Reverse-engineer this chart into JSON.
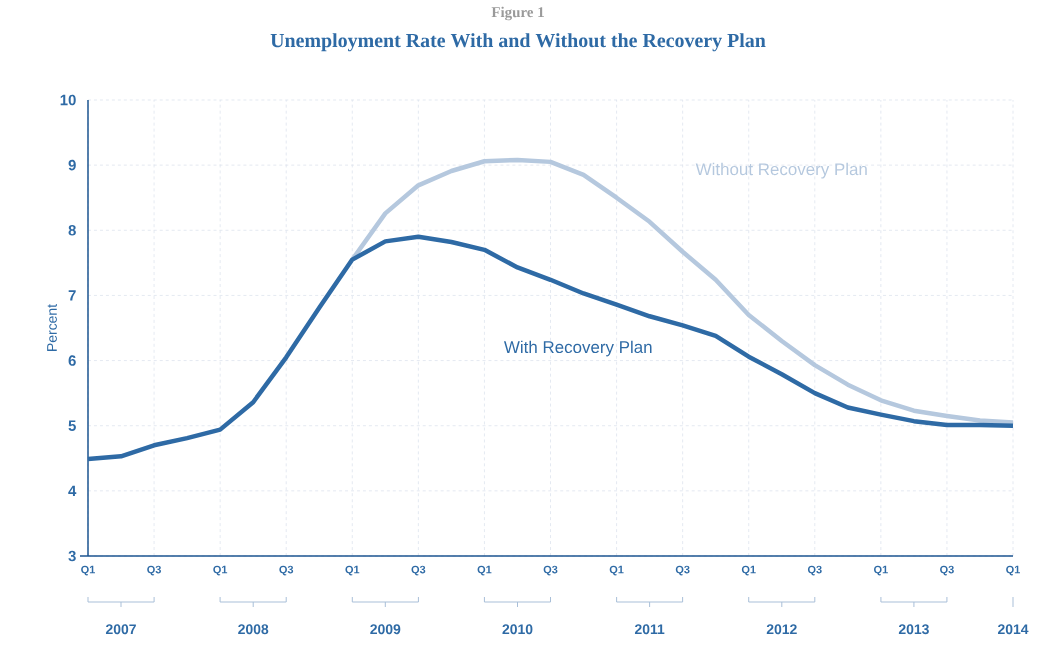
{
  "chart_data": {
    "type": "line",
    "title": "Unemployment Rate With and Without the Recovery Plan",
    "ylabel": "Percent",
    "annotations": [
      "Figure 1",
      "2007",
      "2008",
      "2009",
      "2010",
      "2011",
      "2012",
      "2013",
      "2014"
    ],
    "categories": [
      "Q1",
      null,
      "Q3",
      null,
      "Q1",
      null,
      "Q3",
      null,
      "Q1",
      null,
      "Q3",
      null,
      "Q1",
      null,
      "Q3",
      null,
      "Q1",
      null,
      "Q3",
      null,
      "Q1",
      null,
      "Q3",
      null,
      "Q1",
      null,
      "Q3",
      null,
      "Q1"
    ],
    "series": [
      {
        "name": "Without Recovery Plan",
        "color": "#b5c8de",
        "values": [
          null,
          null,
          null,
          null,
          null,
          null,
          null,
          null,
          7.55,
          8.26,
          8.69,
          8.91,
          9.06,
          9.08,
          9.05,
          8.85,
          8.5,
          8.13,
          7.67,
          7.24,
          6.7,
          6.3,
          5.93,
          5.63,
          5.39,
          5.23,
          5.15,
          5.08,
          5.05
        ]
      },
      {
        "name": "With Recovery Plan",
        "color": "#2e6aa5",
        "values": [
          4.49,
          4.53,
          4.7,
          4.81,
          4.94,
          5.36,
          6.05,
          6.81,
          7.55,
          7.83,
          7.9,
          7.82,
          7.7,
          7.43,
          7.24,
          7.03,
          6.86,
          6.68,
          6.54,
          6.38,
          6.06,
          5.79,
          5.5,
          5.28,
          5.17,
          5.07,
          5.01,
          5.01,
          5.0
        ]
      }
    ],
    "ylim": [
      3,
      10
    ],
    "yticks": [
      3,
      4,
      5,
      6,
      7,
      8,
      9,
      10
    ],
    "grid": true,
    "marker": "none",
    "line_style": "solid"
  }
}
